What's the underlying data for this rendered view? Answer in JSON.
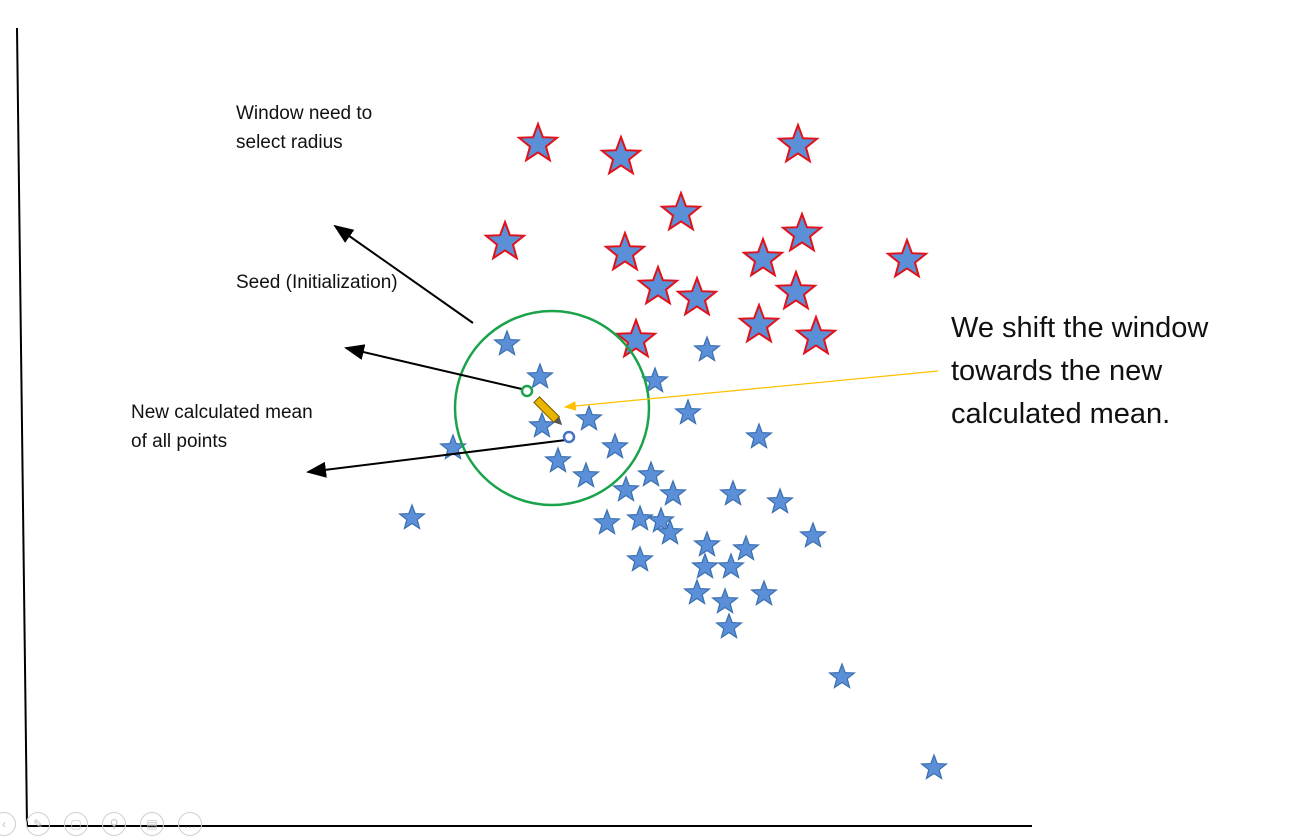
{
  "labels": {
    "window": "Window need to\nselect radius",
    "seed": "Seed (Initialization)",
    "mean": "New calculated mean\nof all points"
  },
  "callout": "We shift the window\ntowards the new\ncalculated mean.",
  "colors": {
    "star_fill": "#5b8fd8",
    "star_stroke": "#3a6fb0",
    "outlier_stroke": "#e0131a",
    "window_circle": "#1aa34a",
    "seed_dot": "#1aa34a",
    "mean_dot": "#4472c4",
    "shift_line": "#ffc000",
    "pencil": "#e8b500",
    "arrow": "#000000",
    "axis": "#000000"
  },
  "toolbar": {
    "icons": [
      "chevron-left-icon",
      "pen-icon",
      "slides-icon",
      "zoom-icon",
      "subtitles-icon",
      "more-icon"
    ]
  }
}
